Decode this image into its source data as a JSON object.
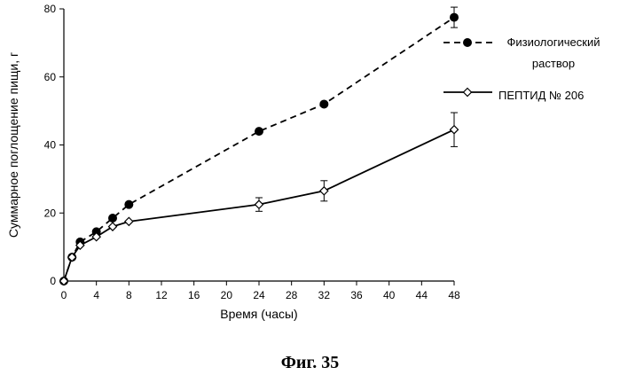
{
  "caption": "Фиг. 35",
  "chart_data": {
    "type": "line",
    "xlabel": "Время (часы)",
    "ylabel": "Суммарное поглощение пищи, г",
    "xlim": [
      0,
      48
    ],
    "ylim": [
      0,
      80
    ],
    "xticks": [
      "0",
      "4",
      "8",
      "12",
      "16",
      "20",
      "24",
      "28",
      "32",
      "36",
      "40",
      "44",
      "48"
    ],
    "yticks": [
      "0",
      "20",
      "40",
      "60",
      "80"
    ],
    "grid": false,
    "legend_position": "right",
    "series": [
      {
        "name_lines": [
          "Физиологический",
          "раствор"
        ],
        "style": "dashed",
        "marker": "filled-circle",
        "x": [
          0,
          1,
          2,
          4,
          6,
          8,
          24,
          32,
          48
        ],
        "y": [
          0,
          7,
          11.5,
          14.5,
          18.5,
          22.5,
          44,
          52,
          77.5
        ],
        "err": [
          0,
          0,
          0,
          0,
          0,
          0,
          0,
          0,
          3
        ]
      },
      {
        "name_lines": [
          "ПЕПТИД №  206"
        ],
        "style": "solid",
        "marker": "open-diamond",
        "x": [
          0,
          1,
          2,
          4,
          6,
          8,
          24,
          32,
          48
        ],
        "y": [
          0,
          7,
          10.5,
          13,
          16,
          17.5,
          22.5,
          26.5,
          44.5
        ],
        "err": [
          0,
          0,
          0,
          0,
          0,
          0,
          2,
          3,
          5
        ]
      }
    ]
  }
}
